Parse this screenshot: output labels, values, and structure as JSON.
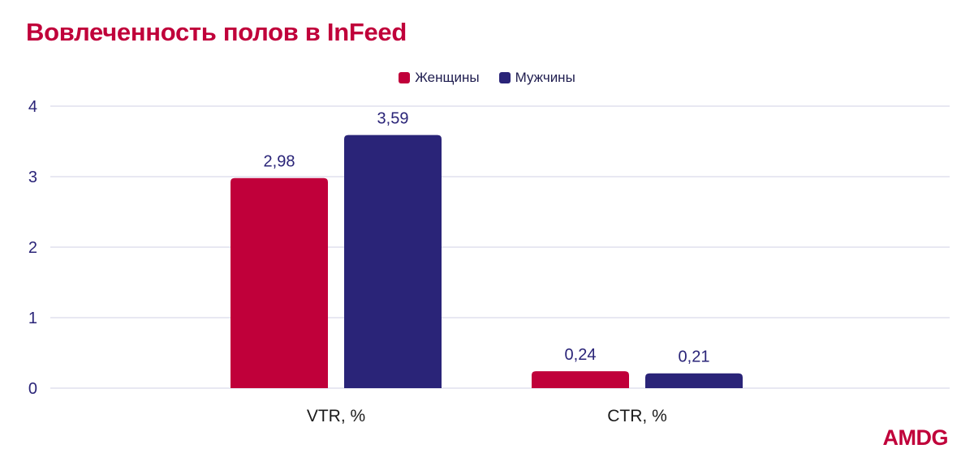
{
  "title": "Вовлеченность полов в InFeed",
  "logo_text": "AMDG",
  "colors": {
    "title": "#c0003a",
    "women": "#c0003a",
    "men": "#2a2478",
    "axis_text": "#2a2478",
    "grid": "#d9d9ea"
  },
  "chart_data": {
    "type": "bar",
    "categories": [
      "VTR, %",
      "CTR, %"
    ],
    "series": [
      {
        "name": "Женщины",
        "values": [
          2.98,
          0.24
        ],
        "labels": [
          "2,98",
          "0,24"
        ]
      },
      {
        "name": "Мужчины",
        "values": [
          3.59,
          0.21
        ],
        "labels": [
          "3,59",
          "0,21"
        ]
      }
    ],
    "ylim": [
      0,
      4
    ],
    "yticks": [
      0,
      1,
      2,
      3,
      4
    ],
    "grid": true,
    "legend_position": "top-center",
    "xlabel": "",
    "ylabel": ""
  }
}
